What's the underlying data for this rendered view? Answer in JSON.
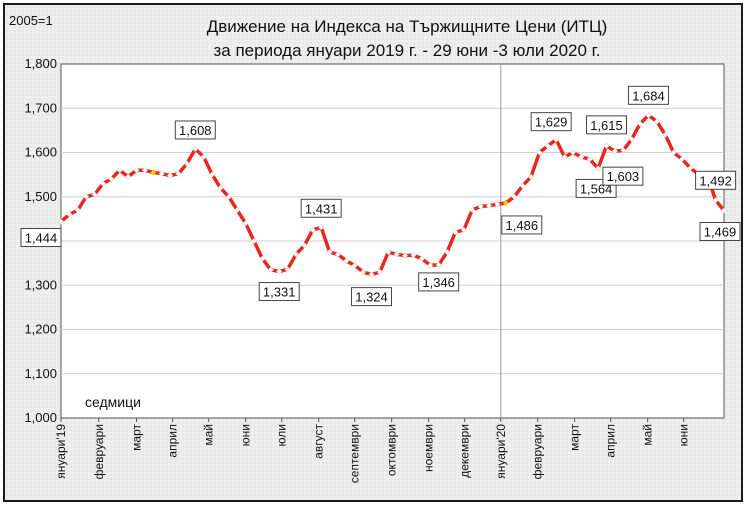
{
  "chart_data": {
    "type": "line",
    "title": "Движение на Индекса на Тържищните Цени (ИТЦ)",
    "subtitle": "за периода януари 2019 г. - 29 юни -3 юли 2020 г.",
    "base_label": "2005=1",
    "xlabel": "седмици",
    "ylim": [
      1.0,
      1.8
    ],
    "y_ticks": [
      "1,000",
      "1,100",
      "1,200",
      "1,300",
      "1,400",
      "1,500",
      "1,600",
      "1,700",
      "1,800"
    ],
    "y_tick_values": [
      1.0,
      1.1,
      1.2,
      1.3,
      1.4,
      1.5,
      1.6,
      1.7,
      1.8
    ],
    "month_labels": [
      {
        "label": "януари'19",
        "week": 0
      },
      {
        "label": "февруари",
        "week": 4.5
      },
      {
        "label": "март",
        "week": 9
      },
      {
        "label": "април",
        "week": 13.3
      },
      {
        "label": "май",
        "week": 17.6
      },
      {
        "label": "юни",
        "week": 22
      },
      {
        "label": "юли",
        "week": 26.3
      },
      {
        "label": "август",
        "week": 30.7
      },
      {
        "label": "септември",
        "week": 35
      },
      {
        "label": "октомври",
        "week": 39.4
      },
      {
        "label": "ноември",
        "week": 43.8
      },
      {
        "label": "декември",
        "week": 48.1
      },
      {
        "label": "януари'20",
        "week": 52.4
      },
      {
        "label": "февруари",
        "week": 56.8
      },
      {
        "label": "март",
        "week": 61.2
      },
      {
        "label": "април",
        "week": 65.5
      },
      {
        "label": "май",
        "week": 69.9
      },
      {
        "label": "юни",
        "week": 74.2
      }
    ],
    "x_weeks_total": 78,
    "marker_week": 52.4,
    "series": [
      {
        "values": [
          1.444,
          1.46,
          1.47,
          1.5,
          1.505,
          1.53,
          1.54,
          1.56,
          1.545,
          1.56,
          1.56,
          1.555,
          1.552,
          1.548,
          1.552,
          1.575,
          1.608,
          1.59,
          1.55,
          1.52,
          1.5,
          1.47,
          1.44,
          1.4,
          1.36,
          1.335,
          1.331,
          1.336,
          1.37,
          1.39,
          1.425,
          1.431,
          1.375,
          1.37,
          1.355,
          1.345,
          1.33,
          1.324,
          1.33,
          1.375,
          1.37,
          1.367,
          1.368,
          1.36,
          1.345,
          1.346,
          1.375,
          1.42,
          1.425,
          1.47,
          1.478,
          1.48,
          1.483,
          1.486,
          1.5,
          1.525,
          1.545,
          1.6,
          1.615,
          1.629,
          1.59,
          1.6,
          1.59,
          1.585,
          1.564,
          1.615,
          1.603,
          1.605,
          1.63,
          1.665,
          1.684,
          1.67,
          1.64,
          1.6,
          1.585,
          1.565,
          1.55,
          1.55,
          1.492,
          1.469
        ]
      }
    ],
    "annotations": [
      {
        "text": "1,444",
        "index": 0
      },
      {
        "text": "1,608",
        "index": 16
      },
      {
        "text": "1,331",
        "index": 26
      },
      {
        "text": "1,431",
        "index": 31
      },
      {
        "text": "1,324",
        "index": 37
      },
      {
        "text": "1,346",
        "index": 45
      },
      {
        "text": "1,486",
        "index": 53
      },
      {
        "text": "1,629",
        "index": 59
      },
      {
        "text": "1,564",
        "index": 64
      },
      {
        "text": "1,615",
        "index": 65
      },
      {
        "text": "1,603",
        "index": 66
      },
      {
        "text": "1,684",
        "index": 70
      },
      {
        "text": "1,492",
        "index": 78
      },
      {
        "text": "1,469",
        "index": 79
      }
    ],
    "line_color": "#e8281e",
    "marker_fill": "#ffffff",
    "highlight_color": "#ffd700",
    "grid": true
  }
}
